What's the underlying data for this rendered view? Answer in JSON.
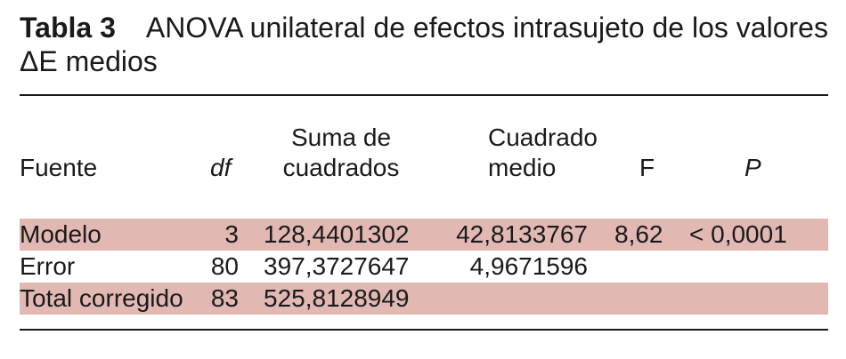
{
  "table": {
    "label": "Tabla 3",
    "title": "ANOVA unilateral de efectos intrasujeto de los valores ΔE medios",
    "headers": {
      "fuente": "Fuente",
      "df": "df",
      "suma_line1": "Suma de",
      "suma_line2": "cuadrados",
      "cuadrado_line1": "Cuadrado",
      "cuadrado_line2": "medio",
      "f": "F",
      "p": "P"
    },
    "rows": [
      {
        "fuente": "Modelo",
        "df": "3",
        "suma": "128,4401302",
        "cuadrado": "42,8133767",
        "f": "8,62",
        "p": "< 0,0001"
      },
      {
        "fuente": "Error",
        "df": "80",
        "suma": "397,3727647",
        "cuadrado": "4,9671596",
        "f": "",
        "p": ""
      },
      {
        "fuente": "Total corregido",
        "df": "83",
        "suma": "525,8128949",
        "cuadrado": "",
        "f": "",
        "p": ""
      }
    ]
  }
}
